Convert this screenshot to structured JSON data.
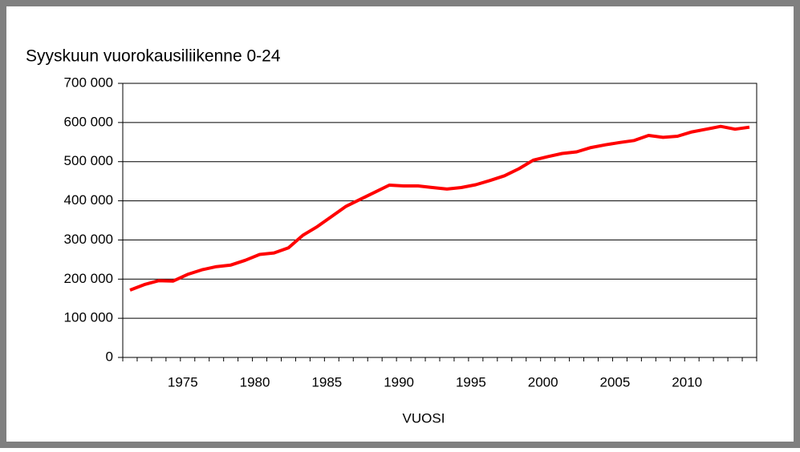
{
  "chart_data": {
    "type": "line",
    "title": "Syyskuun vuorokausiliikenne 0-24",
    "x_label": "VUOSI",
    "categories": [
      null,
      null,
      null,
      null,
      "1975",
      null,
      null,
      null,
      null,
      "1980",
      null,
      null,
      null,
      null,
      "1985",
      null,
      null,
      null,
      null,
      "1990",
      null,
      null,
      null,
      null,
      "1995",
      null,
      null,
      null,
      null,
      "2000",
      null,
      null,
      null,
      null,
      "2005",
      null,
      null,
      null,
      null,
      "2010",
      null,
      null,
      null,
      null
    ],
    "values": [
      172000,
      186000,
      196000,
      195000,
      212000,
      224000,
      232000,
      236000,
      248000,
      263000,
      267000,
      280000,
      312000,
      334000,
      360000,
      386000,
      404000,
      422000,
      440000,
      438000,
      438000,
      434000,
      430000,
      434000,
      441000,
      452000,
      464000,
      482000,
      504000,
      513000,
      521000,
      525000,
      536000,
      543000,
      549000,
      554000,
      567000,
      562000,
      565000,
      576000,
      583000,
      590000,
      583000,
      588000
    ],
    "color": "#ff0000",
    "ylim": [
      0,
      700000
    ],
    "yticks": [
      0,
      {
        "value": 100000,
        "label": "100 000"
      },
      {
        "value": 200000,
        "label": "200 000"
      },
      {
        "value": 300000,
        "label": "300 000"
      },
      {
        "value": 400000,
        "label": "400 000"
      },
      {
        "value": 500000,
        "label": "500 000"
      },
      {
        "value": 600000,
        "label": "600 000"
      },
      {
        "value": 700000,
        "label": "700 000"
      }
    ],
    "grid": true
  }
}
